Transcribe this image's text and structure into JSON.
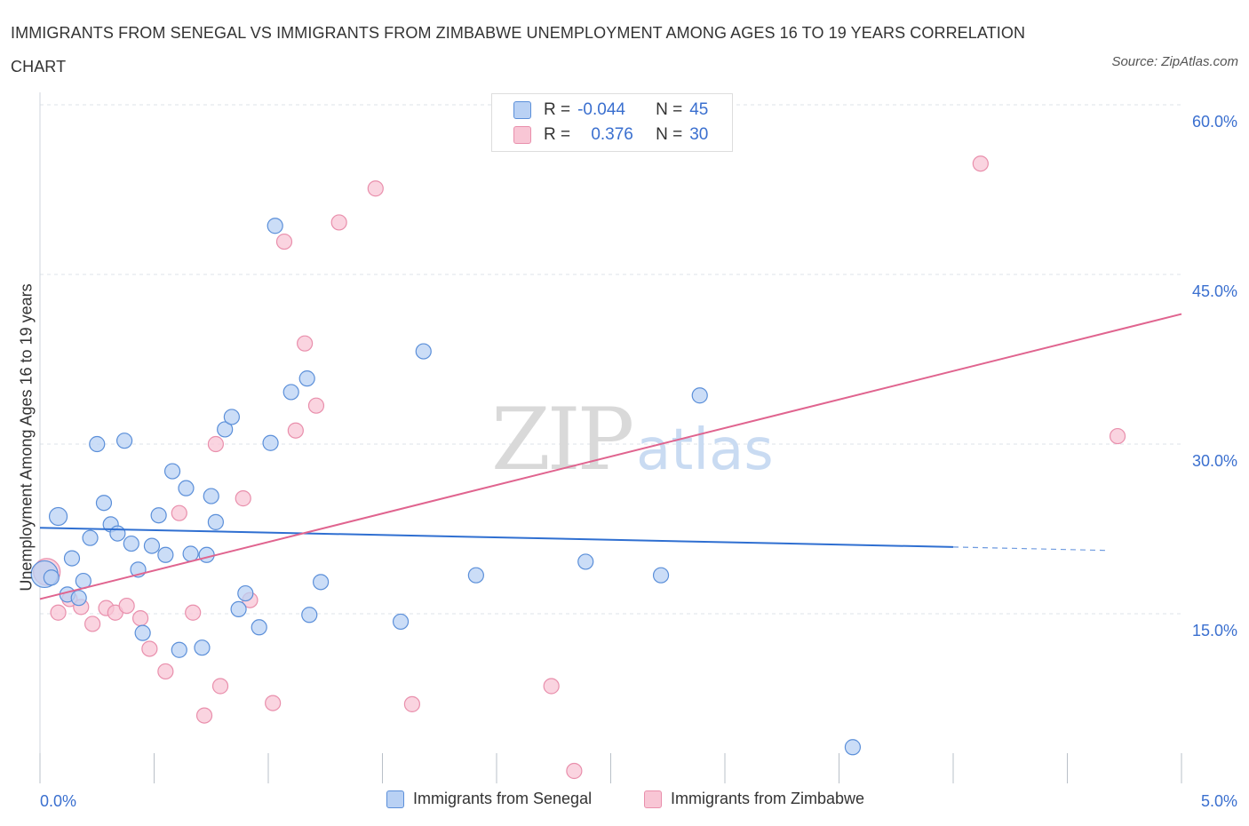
{
  "title": "IMMIGRANTS FROM SENEGAL VS IMMIGRANTS FROM ZIMBABWE UNEMPLOYMENT AMONG AGES 16 TO 19 YEARS CORRELATION CHART",
  "source": "Source: ZipAtlas.com",
  "watermark": {
    "zip": "ZIP",
    "atlas": "atlas"
  },
  "legend": {
    "rows": [
      {
        "r_label": "R =",
        "r_value": "-0.044",
        "n_label": "N =",
        "n_value": "45"
      },
      {
        "r_label": "R =",
        "r_value": "0.376",
        "n_label": "N =",
        "n_value": "30"
      }
    ]
  },
  "colors": {
    "senegal": "#5b8fd9",
    "senegal_fill": "#b9d1f4",
    "senegal_line": "#2f6fd1",
    "zimbabwe": "#e98fac",
    "zimbabwe_fill": "#f8c6d5",
    "zimbabwe_line": "#e0648f",
    "grid": "#dde3ea",
    "tick_label": "#3a6fcf"
  },
  "chart_data": {
    "type": "scatter",
    "title": "IMMIGRANTS FROM SENEGAL VS IMMIGRANTS FROM ZIMBABWE UNEMPLOYMENT AMONG AGES 16 TO 19 YEARS CORRELATION CHART",
    "xlabel": "",
    "ylabel": "Unemployment Among Ages 16 to 19 years",
    "xlim": [
      0,
      5
    ],
    "ylim": [
      0,
      60
    ],
    "x_tick_labels": [
      "0.0%",
      "5.0%"
    ],
    "y_ticks": [
      15,
      30,
      45,
      60
    ],
    "y_tick_labels": [
      "15.0%",
      "30.0%",
      "45.0%",
      "60.0%"
    ],
    "grid": true,
    "legend_placement": "bottom",
    "series": [
      {
        "name": "Immigrants from Senegal",
        "r": -0.044,
        "n": 45,
        "points": [
          [
            0.02,
            18.5
          ],
          [
            0.05,
            18.2
          ],
          [
            0.08,
            23.6
          ],
          [
            0.12,
            16.7
          ],
          [
            0.14,
            19.9
          ],
          [
            0.17,
            16.4
          ],
          [
            0.19,
            17.9
          ],
          [
            0.22,
            21.7
          ],
          [
            0.25,
            30.0
          ],
          [
            0.28,
            24.8
          ],
          [
            0.31,
            22.9
          ],
          [
            0.34,
            22.1
          ],
          [
            0.37,
            30.3
          ],
          [
            0.4,
            21.2
          ],
          [
            0.43,
            18.9
          ],
          [
            0.45,
            13.3
          ],
          [
            0.49,
            21.0
          ],
          [
            0.52,
            23.7
          ],
          [
            0.55,
            20.2
          ],
          [
            0.58,
            27.6
          ],
          [
            0.61,
            11.8
          ],
          [
            0.64,
            26.1
          ],
          [
            0.66,
            20.3
          ],
          [
            0.71,
            12.0
          ],
          [
            0.73,
            20.2
          ],
          [
            0.75,
            25.4
          ],
          [
            0.77,
            23.1
          ],
          [
            0.81,
            31.3
          ],
          [
            0.84,
            32.4
          ],
          [
            0.87,
            15.4
          ],
          [
            0.9,
            16.8
          ],
          [
            0.96,
            13.8
          ],
          [
            1.01,
            30.1
          ],
          [
            1.03,
            49.3
          ],
          [
            1.1,
            34.6
          ],
          [
            1.17,
            35.8
          ],
          [
            1.18,
            14.9
          ],
          [
            1.23,
            17.8
          ],
          [
            1.58,
            14.3
          ],
          [
            1.68,
            38.2
          ],
          [
            1.91,
            18.4
          ],
          [
            2.39,
            19.6
          ],
          [
            2.72,
            18.4
          ],
          [
            2.89,
            34.3
          ],
          [
            3.56,
            3.2
          ]
        ]
      },
      {
        "name": "Immigrants from Zimbabwe",
        "r": 0.376,
        "n": 30,
        "points": [
          [
            0.03,
            18.7
          ],
          [
            0.08,
            15.1
          ],
          [
            0.13,
            16.3
          ],
          [
            0.18,
            15.6
          ],
          [
            0.23,
            14.1
          ],
          [
            0.29,
            15.5
          ],
          [
            0.33,
            15.1
          ],
          [
            0.38,
            15.7
          ],
          [
            0.44,
            14.6
          ],
          [
            0.48,
            11.9
          ],
          [
            0.55,
            9.9
          ],
          [
            0.61,
            23.9
          ],
          [
            0.67,
            15.1
          ],
          [
            0.72,
            6.0
          ],
          [
            0.77,
            30.0
          ],
          [
            0.79,
            8.6
          ],
          [
            0.89,
            25.2
          ],
          [
            0.92,
            16.2
          ],
          [
            1.02,
            7.1
          ],
          [
            1.07,
            47.9
          ],
          [
            1.12,
            31.2
          ],
          [
            1.16,
            38.9
          ],
          [
            1.21,
            33.4
          ],
          [
            1.31,
            49.6
          ],
          [
            1.47,
            52.6
          ],
          [
            1.63,
            7.0
          ],
          [
            2.24,
            8.6
          ],
          [
            2.34,
            1.1
          ],
          [
            4.12,
            54.8
          ],
          [
            4.72,
            30.7
          ]
        ]
      }
    ],
    "trend_lines": [
      {
        "series": "Immigrants from Senegal",
        "x": [
          0,
          4.0
        ],
        "y": [
          22.6,
          20.9
        ],
        "dashed_extension_to_x": 4.67,
        "dashed_extension_y": 20.6
      },
      {
        "series": "Immigrants from Zimbabwe",
        "x": [
          0,
          5
        ],
        "y": [
          16.3,
          41.5
        ]
      }
    ]
  }
}
